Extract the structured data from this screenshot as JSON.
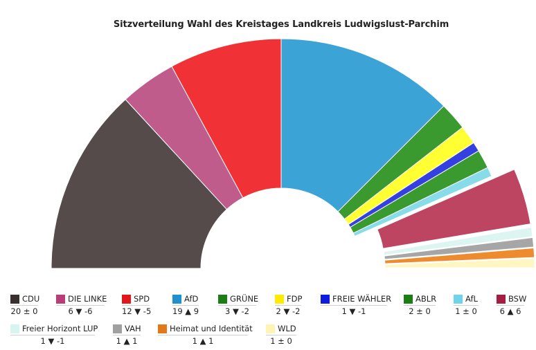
{
  "chart_data": {
    "type": "pie",
    "subtype": "parliament-semicircle",
    "title": "Sitzverteilung Wahl des Kreistages Landkreis Ludwigslust-Parchim",
    "categories": [
      "CDU",
      "DIE LINKE",
      "SPD",
      "AfD",
      "GRÜNE",
      "FDP",
      "FREIE WÄHLER",
      "ABLR",
      "AfL",
      "BSW",
      "Freier Horizont LUP",
      "VAH",
      "Heimat und Identität",
      "WLD"
    ],
    "values": [
      20,
      6,
      12,
      19,
      3,
      2,
      1,
      2,
      1,
      6,
      1,
      1,
      1,
      1
    ],
    "changes": [
      "20 ± 0",
      "6 ▼ -6",
      "12 ▼ -5",
      "19 ▲ 9",
      "3 ▼ -2",
      "2 ▼ -2",
      "1 ▼ -1",
      "2 ± 0",
      "1 ± 0",
      "6 ▲ 6",
      "1 ▼ -1",
      "1 ▲ 1",
      "1 ▲ 1",
      "1 ± 0"
    ],
    "colors": [
      "#554b4b",
      "#bf5c8b",
      "#f03237",
      "#3ca3d7",
      "#3a9a30",
      "#ffff33",
      "#3540e0",
      "#3a9a30",
      "#88dbe8",
      "#be4561",
      "#dcf5f0",
      "#a6a6a6",
      "#ed8b2e",
      "#fff6c2"
    ],
    "legend_colors": [
      "#382f2f",
      "#b73e77",
      "#e0171c",
      "#1e90ce",
      "#1b7d14",
      "#ffea00",
      "#0f1cde",
      "#1b7d14",
      "#6fd4e9",
      "#a61d42",
      "#d7f5f0",
      "#a0a0a0",
      "#e27918",
      "#fff4b5"
    ],
    "exploded": [
      "BSW",
      "Freier Horizont LUP",
      "VAH",
      "Heimat und Identität",
      "WLD"
    ],
    "legend_position": "bottom"
  }
}
